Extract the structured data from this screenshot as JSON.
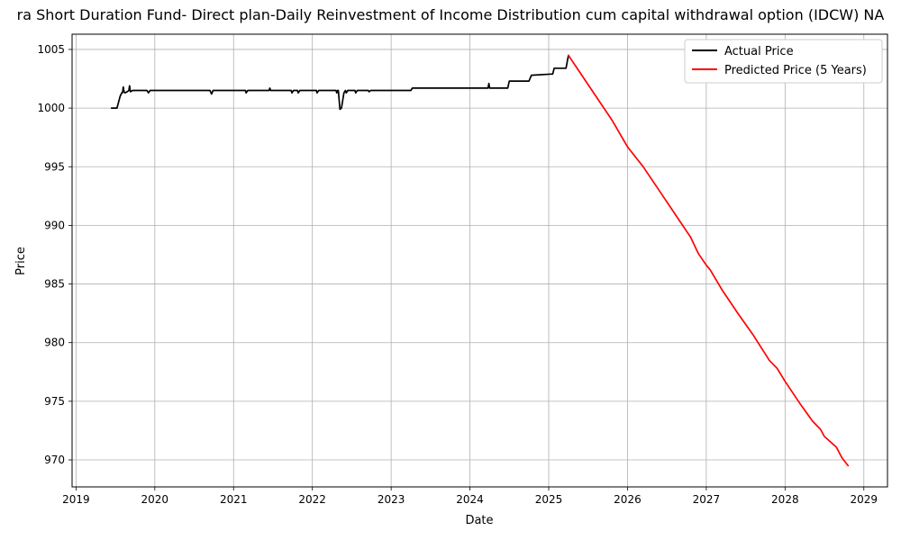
{
  "chart_data": {
    "type": "line",
    "title": "ra Short Duration Fund- Direct plan-Daily Reinvestment of Income Distribution cum capital withdrawal option (IDCW) NA",
    "xlabel": "Date",
    "ylabel": "Price",
    "xlim": [
      2018.95,
      2029.3
    ],
    "ylim": [
      967.7,
      1006.3
    ],
    "x_ticks": [
      2019,
      2020,
      2021,
      2022,
      2023,
      2024,
      2025,
      2026,
      2027,
      2028,
      2029
    ],
    "y_ticks": [
      970,
      975,
      980,
      985,
      990,
      995,
      1000,
      1005
    ],
    "grid": true,
    "legend_position": "top-right",
    "series": [
      {
        "name": "Actual Price",
        "color": "#000000",
        "points": [
          [
            2019.45,
            1000.0
          ],
          [
            2019.52,
            1000.0
          ],
          [
            2019.56,
            1001.0
          ],
          [
            2019.58,
            1001.3
          ],
          [
            2019.59,
            1001.3
          ],
          [
            2019.6,
            1001.8
          ],
          [
            2019.61,
            1001.4
          ],
          [
            2019.62,
            1001.3
          ],
          [
            2019.65,
            1001.4
          ],
          [
            2019.67,
            1001.5
          ],
          [
            2019.68,
            1001.9
          ],
          [
            2019.69,
            1001.4
          ],
          [
            2019.72,
            1001.5
          ],
          [
            2019.9,
            1001.5
          ],
          [
            2019.92,
            1001.3
          ],
          [
            2019.94,
            1001.5
          ],
          [
            2020.7,
            1001.5
          ],
          [
            2020.72,
            1001.2
          ],
          [
            2020.74,
            1001.5
          ],
          [
            2021.15,
            1001.5
          ],
          [
            2021.16,
            1001.3
          ],
          [
            2021.18,
            1001.5
          ],
          [
            2021.45,
            1001.5
          ],
          [
            2021.46,
            1001.7
          ],
          [
            2021.47,
            1001.5
          ],
          [
            2021.73,
            1001.5
          ],
          [
            2021.74,
            1001.3
          ],
          [
            2021.76,
            1001.5
          ],
          [
            2021.81,
            1001.5
          ],
          [
            2021.82,
            1001.3
          ],
          [
            2021.84,
            1001.5
          ],
          [
            2022.05,
            1001.5
          ],
          [
            2022.06,
            1001.3
          ],
          [
            2022.08,
            1001.5
          ],
          [
            2022.3,
            1001.5
          ],
          [
            2022.31,
            1001.3
          ],
          [
            2022.32,
            1001.5
          ],
          [
            2022.33,
            1001.5
          ],
          [
            2022.35,
            999.9
          ],
          [
            2022.37,
            1000.0
          ],
          [
            2022.4,
            1001.3
          ],
          [
            2022.42,
            1001.5
          ],
          [
            2022.43,
            1001.3
          ],
          [
            2022.45,
            1001.5
          ],
          [
            2022.54,
            1001.5
          ],
          [
            2022.55,
            1001.3
          ],
          [
            2022.57,
            1001.5
          ],
          [
            2022.71,
            1001.5
          ],
          [
            2022.72,
            1001.4
          ],
          [
            2022.74,
            1001.5
          ],
          [
            2023.25,
            1001.5
          ],
          [
            2023.27,
            1001.7
          ],
          [
            2024.23,
            1001.7
          ],
          [
            2024.24,
            1002.1
          ],
          [
            2024.25,
            1001.7
          ],
          [
            2024.48,
            1001.7
          ],
          [
            2024.5,
            1002.3
          ],
          [
            2024.75,
            1002.3
          ],
          [
            2024.78,
            1002.8
          ],
          [
            2025.03,
            1002.9
          ],
          [
            2025.05,
            1002.9
          ],
          [
            2025.07,
            1003.4
          ],
          [
            2025.22,
            1003.4
          ],
          [
            2025.25,
            1004.5
          ]
        ]
      },
      {
        "name": "Predicted Price (5 Years)",
        "color": "#ff0000",
        "points": [
          [
            2025.25,
            1004.5
          ],
          [
            2025.4,
            1003.0
          ],
          [
            2025.6,
            1001.0
          ],
          [
            2025.8,
            999.0
          ],
          [
            2026.0,
            996.7
          ],
          [
            2026.2,
            995.0
          ],
          [
            2026.4,
            993.0
          ],
          [
            2026.6,
            991.0
          ],
          [
            2026.8,
            989.0
          ],
          [
            2026.9,
            987.6
          ],
          [
            2027.0,
            986.6
          ],
          [
            2027.05,
            986.2
          ],
          [
            2027.2,
            984.5
          ],
          [
            2027.4,
            982.5
          ],
          [
            2027.6,
            980.6
          ],
          [
            2027.8,
            978.5
          ],
          [
            2027.9,
            977.8
          ],
          [
            2028.0,
            976.7
          ],
          [
            2028.2,
            974.7
          ],
          [
            2028.35,
            973.3
          ],
          [
            2028.45,
            972.6
          ],
          [
            2028.5,
            972.0
          ],
          [
            2028.65,
            971.1
          ],
          [
            2028.72,
            970.2
          ],
          [
            2028.8,
            969.5
          ]
        ]
      }
    ]
  }
}
